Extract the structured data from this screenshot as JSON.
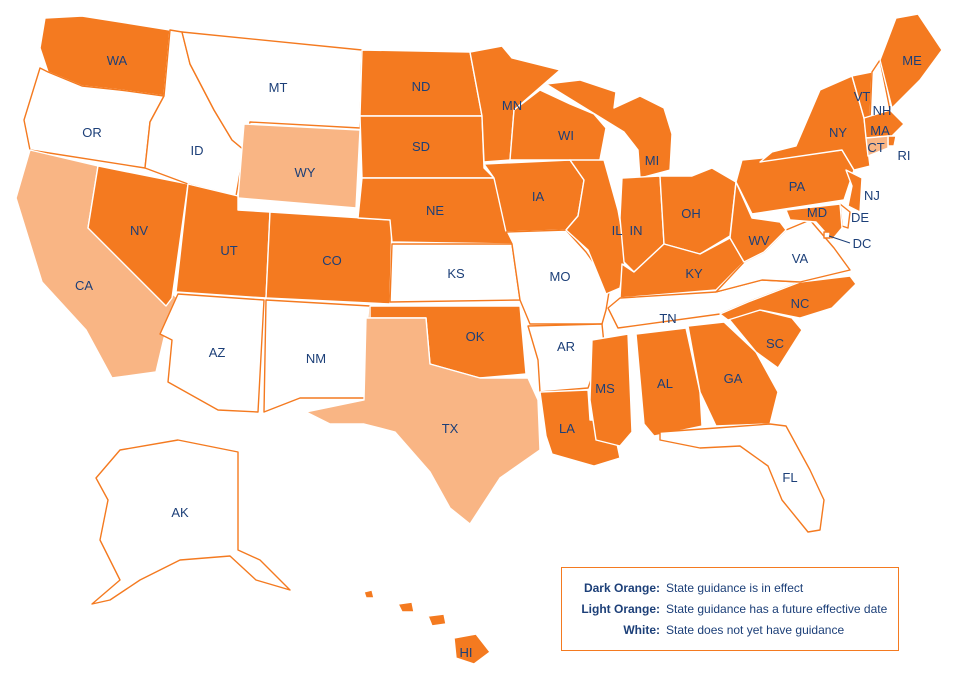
{
  "colors": {
    "dark_orange": "#f47a20",
    "light_orange": "#f9b584",
    "white": "#ffffff",
    "outline": "#f47a20",
    "label": "#1c3f78"
  },
  "legend": [
    {
      "key": "Dark Orange:",
      "desc": "State guidance is in effect"
    },
    {
      "key": "Light Orange:",
      "desc": "State guidance has a future effective date"
    },
    {
      "key": "White:",
      "desc": "State does not yet have guidance"
    }
  ],
  "states": {
    "WA": "dark",
    "OR": "white",
    "CA": "light",
    "NV": "dark",
    "ID": "white",
    "MT": "white",
    "WY": "light",
    "UT": "dark",
    "AZ": "white",
    "CO": "dark",
    "NM": "white",
    "ND": "dark",
    "SD": "dark",
    "NE": "dark",
    "KS": "white",
    "OK": "dark",
    "TX": "light",
    "MN": "dark",
    "IA": "dark",
    "MO": "white",
    "AR": "white",
    "LA": "dark",
    "WI": "dark",
    "IL": "dark",
    "MI": "dark",
    "IN": "dark",
    "OH": "dark",
    "KY": "dark",
    "TN": "white",
    "MS": "dark",
    "AL": "dark",
    "GA": "dark",
    "FL": "white",
    "SC": "dark",
    "NC": "dark",
    "VA": "white",
    "WV": "dark",
    "PA": "dark",
    "NY": "dark",
    "VT": "dark",
    "NH": "white",
    "ME": "dark",
    "MA": "dark",
    "RI": "dark",
    "CT": "light",
    "NJ": "dark",
    "DE": "white",
    "MD": "dark",
    "DC": "white",
    "AK": "white",
    "HI": "dark"
  }
}
